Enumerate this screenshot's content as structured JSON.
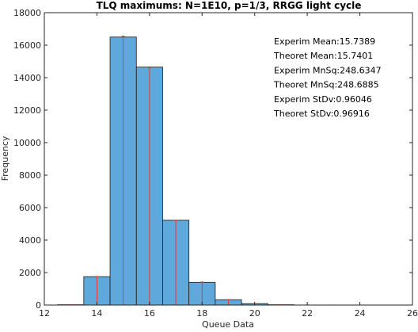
{
  "chart_data": {
    "type": "bar",
    "title": "TLQ maximums: N=1E10, p=1/3, RRGG light cycle",
    "xlabel": "Queue Data",
    "ylabel": "Frequency",
    "xlim": [
      12,
      26
    ],
    "ylim": [
      0,
      18000
    ],
    "xticks": [
      12,
      14,
      16,
      18,
      20,
      22,
      24,
      26
    ],
    "yticks": [
      0,
      2000,
      4000,
      6000,
      8000,
      10000,
      12000,
      14000,
      16000,
      18000
    ],
    "bin_width": 1,
    "bins": [
      {
        "x": 13,
        "experimental": 20,
        "theoretical": 20
      },
      {
        "x": 14,
        "experimental": 1750,
        "theoretical": 1760
      },
      {
        "x": 15,
        "experimental": 16500,
        "theoretical": 16550
      },
      {
        "x": 16,
        "experimental": 14650,
        "theoretical": 14600
      },
      {
        "x": 17,
        "experimental": 5220,
        "theoretical": 5200
      },
      {
        "x": 18,
        "experimental": 1400,
        "theoretical": 1420
      },
      {
        "x": 19,
        "experimental": 330,
        "theoretical": 340
      },
      {
        "x": 20,
        "experimental": 90,
        "theoretical": 90
      },
      {
        "x": 21,
        "experimental": 20,
        "theoretical": 22
      },
      {
        "x": 22,
        "experimental": 5,
        "theoretical": 6
      },
      {
        "x": 23,
        "experimental": 2,
        "theoretical": 2
      },
      {
        "x": 24,
        "experimental": 1,
        "theoretical": 1
      }
    ],
    "annotations": [
      "Experim Mean:15.7389",
      "Theoret Mean:15.7401",
      "Experim MnSq:248.6347",
      "Theoret MnSq:248.6885",
      "Experim StDv:0.96046",
      "Theoret StDv:0.96916"
    ],
    "colors": {
      "bar_fill": "#5fa8dc",
      "bar_edge": "#1a1a1a",
      "theoretical_line": "#e8322a"
    },
    "grid": false
  }
}
